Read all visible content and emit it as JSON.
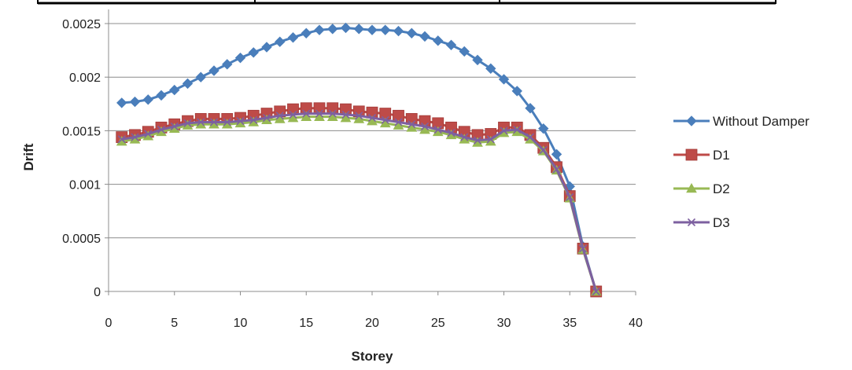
{
  "chart_data": {
    "type": "line",
    "title": "",
    "xlabel": "Storey",
    "ylabel": "Drift",
    "xlim": [
      0,
      40
    ],
    "ylim": [
      0,
      0.0025
    ],
    "xticks": [
      0,
      5,
      10,
      15,
      20,
      25,
      30,
      35,
      40
    ],
    "xtick_labels": [
      "0",
      "5",
      "10",
      "15",
      "20",
      "25",
      "30",
      "35",
      "40"
    ],
    "yticks": [
      0,
      0.0005,
      0.001,
      0.0015,
      0.002,
      0.0025
    ],
    "ytick_labels": [
      "0",
      "0.0005",
      "0.001",
      "0.0015",
      "0.002",
      "0.0025"
    ],
    "grid": "horizontal",
    "legend_position": "right",
    "x": [
      1,
      2,
      3,
      4,
      5,
      6,
      7,
      8,
      9,
      10,
      11,
      12,
      13,
      14,
      15,
      16,
      17,
      18,
      19,
      20,
      21,
      22,
      23,
      24,
      25,
      26,
      27,
      28,
      29,
      30,
      31,
      32,
      33,
      34,
      35,
      36,
      37
    ],
    "series": [
      {
        "name": "Without Damper",
        "color": "#4a7ebb",
        "marker": "diamond",
        "values": [
          0.00176,
          0.00177,
          0.00179,
          0.00183,
          0.00188,
          0.00194,
          0.002,
          0.00206,
          0.00212,
          0.00218,
          0.00223,
          0.00228,
          0.00233,
          0.00237,
          0.00241,
          0.00244,
          0.00245,
          0.00246,
          0.00245,
          0.00244,
          0.00244,
          0.00243,
          0.00241,
          0.00238,
          0.00234,
          0.0023,
          0.00224,
          0.00216,
          0.00208,
          0.00198,
          0.00187,
          0.00171,
          0.00152,
          0.00128,
          0.00098,
          0.00042,
          0.0
        ]
      },
      {
        "name": "D1",
        "color": "#be4b48",
        "marker": "square",
        "values": [
          0.00144,
          0.00146,
          0.00149,
          0.00153,
          0.00156,
          0.00159,
          0.00161,
          0.00161,
          0.00161,
          0.00162,
          0.00164,
          0.00166,
          0.00168,
          0.0017,
          0.00171,
          0.00171,
          0.00171,
          0.0017,
          0.00168,
          0.00167,
          0.00166,
          0.00164,
          0.00161,
          0.00159,
          0.00157,
          0.00153,
          0.00149,
          0.00146,
          0.00147,
          0.00153,
          0.00153,
          0.00146,
          0.00134,
          0.00116,
          0.00089,
          0.0004,
          0.0
        ]
      },
      {
        "name": "D2",
        "color": "#98b954",
        "marker": "triangle",
        "values": [
          0.0014,
          0.00142,
          0.00145,
          0.00149,
          0.00152,
          0.00155,
          0.00156,
          0.00156,
          0.00156,
          0.00157,
          0.00158,
          0.0016,
          0.00161,
          0.00162,
          0.00163,
          0.00163,
          0.00163,
          0.00162,
          0.00161,
          0.00159,
          0.00157,
          0.00155,
          0.00153,
          0.00151,
          0.00149,
          0.00146,
          0.00142,
          0.00139,
          0.0014,
          0.00148,
          0.00149,
          0.00142,
          0.00131,
          0.00113,
          0.00087,
          0.00039,
          0.0
        ]
      },
      {
        "name": "D3",
        "color": "#7d60a0",
        "marker": "x",
        "values": [
          0.00142,
          0.00144,
          0.00147,
          0.00151,
          0.00154,
          0.00157,
          0.00158,
          0.00158,
          0.00158,
          0.00159,
          0.0016,
          0.00162,
          0.00164,
          0.00165,
          0.00166,
          0.00166,
          0.00166,
          0.00165,
          0.00164,
          0.00162,
          0.0016,
          0.00158,
          0.00156,
          0.00154,
          0.00151,
          0.00148,
          0.00144,
          0.00141,
          0.00142,
          0.0015,
          0.00151,
          0.00144,
          0.00132,
          0.00114,
          0.00088,
          0.0004,
          0.0
        ]
      }
    ]
  }
}
